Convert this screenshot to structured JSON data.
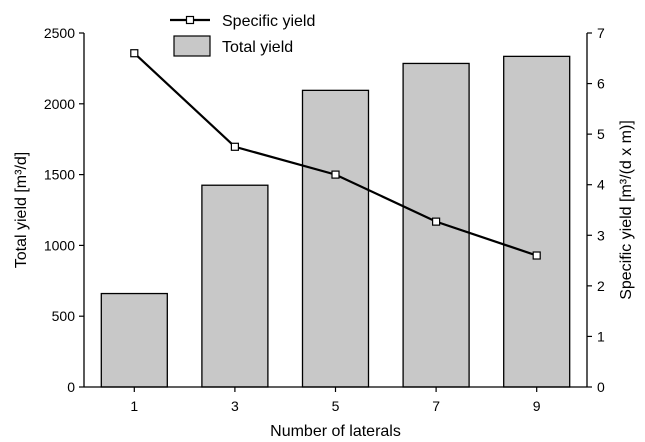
{
  "chart_data": {
    "type": "bar",
    "xlabel": "Number of laterals",
    "ylabel_left": "Total yield [m³/d]",
    "ylabel_right": "Specific yield [m³/(d x m)]",
    "categories": [
      "1",
      "3",
      "5",
      "7",
      "9"
    ],
    "ylim_left": [
      0,
      2500
    ],
    "ylim_right": [
      0,
      7
    ],
    "yticks_left": [
      "0",
      "500",
      "1000",
      "1500",
      "2000",
      "2500"
    ],
    "yticks_right": [
      "0",
      "1",
      "2",
      "3",
      "4",
      "5",
      "6",
      "7"
    ],
    "grid": false,
    "legend_position": "top",
    "series": [
      {
        "name": "Total yield",
        "kind": "bar",
        "axis": "left",
        "values": [
          660,
          1425,
          2095,
          2285,
          2335
        ],
        "color": "#c8c8c8"
      },
      {
        "name": "Specific yield",
        "kind": "line",
        "axis": "right",
        "marker": "open-square",
        "values": [
          6.6,
          4.75,
          4.2,
          3.27,
          2.6
        ],
        "color": "#000000"
      }
    ]
  }
}
